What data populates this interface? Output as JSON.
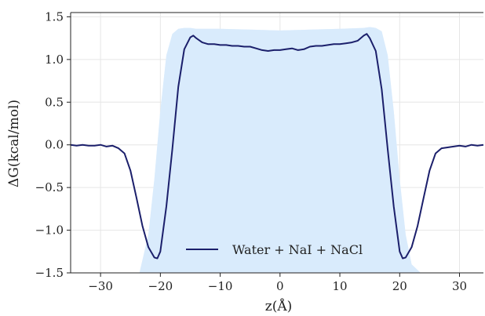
{
  "chart_data": {
    "type": "line",
    "title": "",
    "xlabel": "z(Å)",
    "ylabel": "ΔG(kcal/mol)",
    "xlim": [
      -35,
      34
    ],
    "ylim": [
      -1.5,
      1.55
    ],
    "xticks": [
      -30,
      -20,
      -10,
      0,
      10,
      20,
      30
    ],
    "yticks": [
      -1.5,
      -1.0,
      -0.5,
      0.0,
      0.5,
      1.0,
      1.5
    ],
    "xtick_labels": [
      "−30",
      "−20",
      "−10",
      "0",
      "10",
      "20",
      "30"
    ],
    "ytick_labels": [
      "−1.5",
      "−1.0",
      "−0.5",
      "0.0",
      "0.5",
      "1.0",
      "1.5"
    ],
    "grid": true,
    "legend_position": "lower-center",
    "line_color": "#1b1f6b",
    "band_color": "#d6eafc",
    "band_edge_color": "#e6f2fd",
    "series": [
      {
        "name": "Water + NaI + NaCl",
        "x": [
          -35,
          -34,
          -33,
          -32,
          -31,
          -30,
          -29,
          -28,
          -27,
          -26,
          -25,
          -24,
          -23,
          -22,
          -21,
          -20.5,
          -20,
          -19,
          -18,
          -17,
          -16,
          -15,
          -14.5,
          -14,
          -13,
          -12,
          -11,
          -10,
          -9,
          -8,
          -7,
          -6,
          -5,
          -4,
          -3,
          -2,
          -1,
          0,
          1,
          2,
          3,
          4,
          5,
          6,
          7,
          8,
          9,
          10,
          11,
          12,
          13,
          14,
          14.5,
          15,
          16,
          17,
          18,
          19,
          20,
          20.5,
          21,
          22,
          23,
          24,
          25,
          26,
          27,
          28,
          29,
          30,
          31,
          32,
          33,
          34
        ],
        "y": [
          0.0,
          -0.01,
          0.0,
          -0.01,
          -0.01,
          0.0,
          -0.02,
          -0.01,
          -0.04,
          -0.1,
          -0.3,
          -0.62,
          -0.95,
          -1.2,
          -1.32,
          -1.33,
          -1.25,
          -0.72,
          -0.05,
          0.68,
          1.12,
          1.26,
          1.28,
          1.25,
          1.2,
          1.18,
          1.18,
          1.17,
          1.17,
          1.16,
          1.16,
          1.15,
          1.15,
          1.13,
          1.11,
          1.1,
          1.11,
          1.11,
          1.12,
          1.13,
          1.11,
          1.12,
          1.15,
          1.16,
          1.16,
          1.17,
          1.18,
          1.18,
          1.19,
          1.2,
          1.22,
          1.28,
          1.3,
          1.25,
          1.1,
          0.65,
          -0.05,
          -0.72,
          -1.25,
          -1.33,
          -1.32,
          -1.2,
          -0.95,
          -0.62,
          -0.3,
          -0.1,
          -0.04,
          -0.03,
          -0.02,
          -0.01,
          -0.02,
          0.0,
          -0.01,
          0.0
        ]
      }
    ],
    "band": {
      "x": [
        -23.5,
        -22,
        -21,
        -20,
        -19,
        -18,
        -17,
        -16,
        -15,
        -14,
        -10,
        -5,
        0,
        5,
        10,
        14,
        15,
        16,
        17,
        18,
        19,
        20,
        21,
        22,
        23.5
      ],
      "y_low": [
        -1.5,
        -1.5,
        -1.5,
        -1.5,
        -1.5,
        -1.5,
        -1.5,
        -1.5,
        -1.5,
        -1.5,
        -1.5,
        -1.5,
        -1.5,
        -1.5,
        -1.5,
        -1.5,
        -1.5,
        -1.5,
        -1.5,
        -1.5,
        -1.5,
        -1.5,
        -1.5,
        -1.5,
        -1.5
      ],
      "y_high": [
        -1.5,
        -1.05,
        -0.4,
        0.4,
        1.05,
        1.3,
        1.36,
        1.37,
        1.37,
        1.36,
        1.36,
        1.35,
        1.34,
        1.35,
        1.36,
        1.37,
        1.38,
        1.37,
        1.33,
        1.05,
        0.4,
        -0.4,
        -1.05,
        -1.4,
        -1.5
      ]
    }
  }
}
